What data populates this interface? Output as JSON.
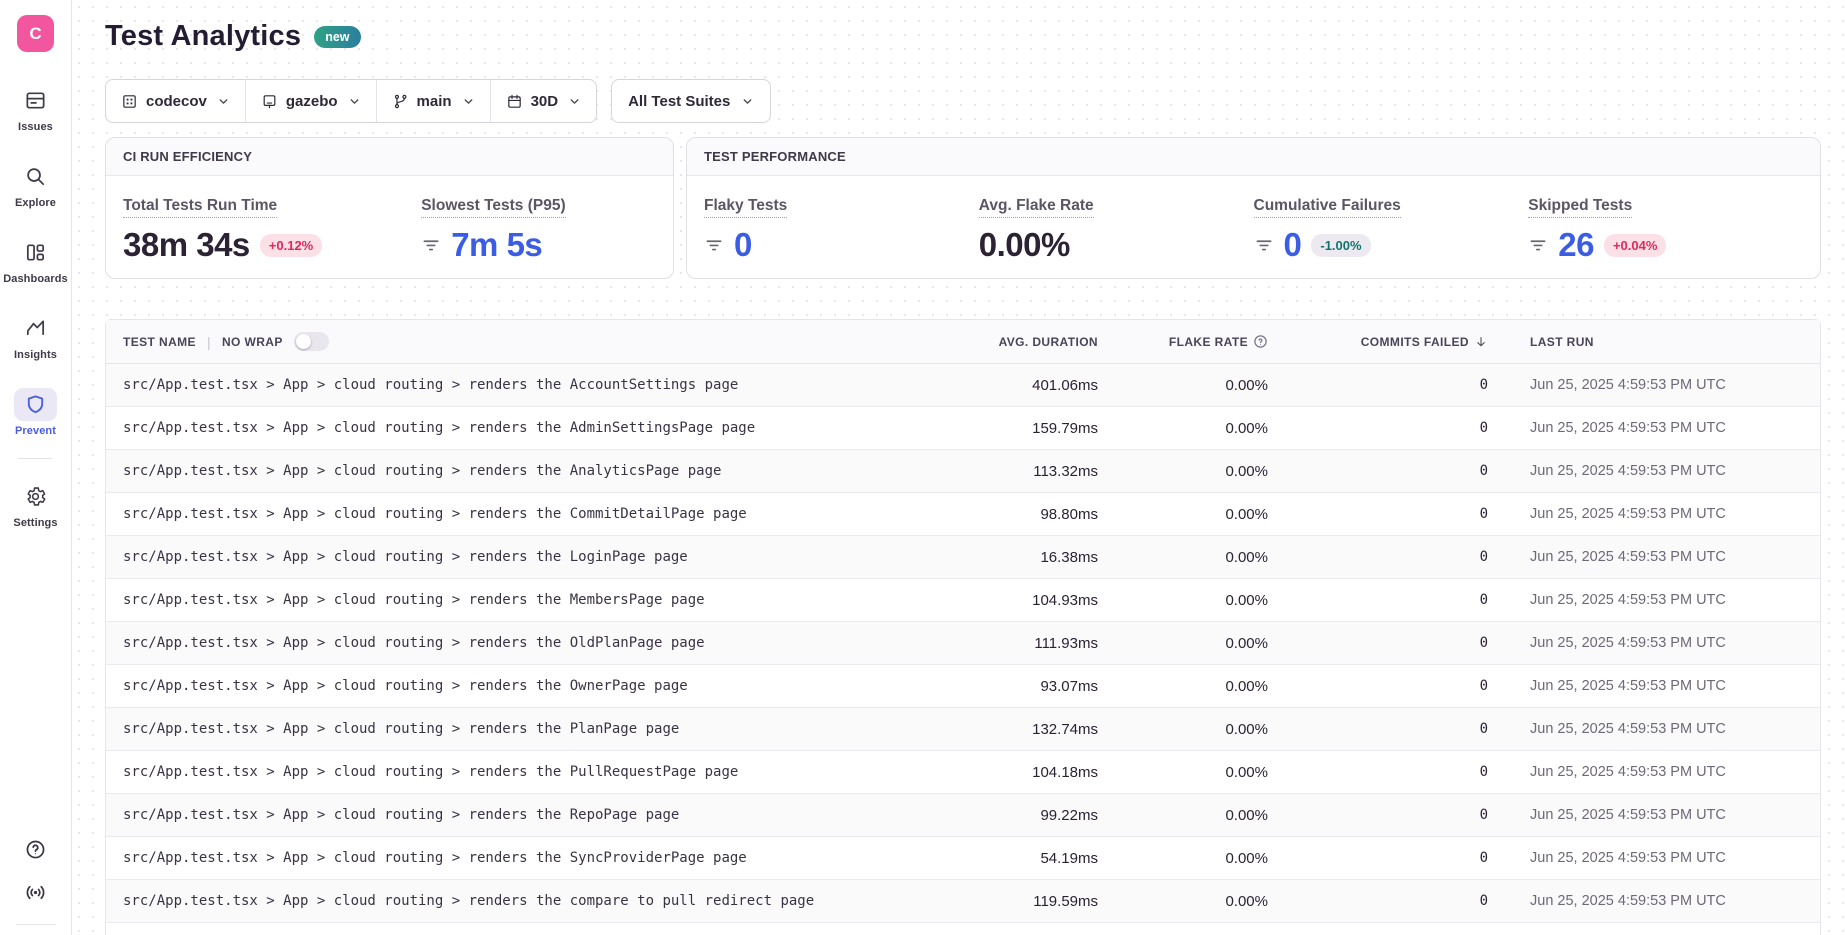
{
  "app": {
    "logo_letter": "C"
  },
  "sidebar": {
    "items": [
      {
        "label": "Issues"
      },
      {
        "label": "Explore"
      },
      {
        "label": "Dashboards"
      },
      {
        "label": "Insights"
      },
      {
        "label": "Prevent"
      },
      {
        "label": "Settings"
      }
    ]
  },
  "header": {
    "title": "Test Analytics",
    "badge": "new"
  },
  "filters": {
    "org": "codecov",
    "repo": "gazebo",
    "branch": "main",
    "date_range": "30D",
    "test_suites": "All Test Suites"
  },
  "panels": {
    "ci": {
      "title": "CI RUN EFFICIENCY",
      "total_run_time": {
        "label": "Total Tests Run Time",
        "value": "38m 34s",
        "badge": "+0.12%"
      },
      "slowest_tests": {
        "label": "Slowest Tests (P95)",
        "value": "7m 5s"
      }
    },
    "performance": {
      "title": "TEST PERFORMANCE",
      "flaky_tests": {
        "label": "Flaky Tests",
        "value": "0"
      },
      "avg_flake_rate": {
        "label": "Avg. Flake Rate",
        "value": "0.00%"
      },
      "cumulative_failures": {
        "label": "Cumulative Failures",
        "value": "0",
        "badge": "-1.00%"
      },
      "skipped_tests": {
        "label": "Skipped Tests",
        "value": "26",
        "badge": "+0.04%"
      }
    }
  },
  "table": {
    "columns": {
      "test_name": "TEST NAME",
      "no_wrap": "NO WRAP",
      "avg_duration": "AVG. DURATION",
      "flake_rate": "FLAKE RATE",
      "commits_failed": "COMMITS FAILED",
      "last_run": "LAST RUN"
    },
    "rows": [
      {
        "name": "src/App.test.tsx > App > cloud routing > renders the AccountSettings page",
        "avg_duration": "401.06ms",
        "flake_rate": "0.00%",
        "commits_failed": "0",
        "last_run": "Jun 25, 2025 4:59:53 PM UTC"
      },
      {
        "name": "src/App.test.tsx > App > cloud routing > renders the AdminSettingsPage page",
        "avg_duration": "159.79ms",
        "flake_rate": "0.00%",
        "commits_failed": "0",
        "last_run": "Jun 25, 2025 4:59:53 PM UTC"
      },
      {
        "name": "src/App.test.tsx > App > cloud routing > renders the AnalyticsPage page",
        "avg_duration": "113.32ms",
        "flake_rate": "0.00%",
        "commits_failed": "0",
        "last_run": "Jun 25, 2025 4:59:53 PM UTC"
      },
      {
        "name": "src/App.test.tsx > App > cloud routing > renders the CommitDetailPage page",
        "avg_duration": "98.80ms",
        "flake_rate": "0.00%",
        "commits_failed": "0",
        "last_run": "Jun 25, 2025 4:59:53 PM UTC"
      },
      {
        "name": "src/App.test.tsx > App > cloud routing > renders the LoginPage page",
        "avg_duration": "16.38ms",
        "flake_rate": "0.00%",
        "commits_failed": "0",
        "last_run": "Jun 25, 2025 4:59:53 PM UTC"
      },
      {
        "name": "src/App.test.tsx > App > cloud routing > renders the MembersPage page",
        "avg_duration": "104.93ms",
        "flake_rate": "0.00%",
        "commits_failed": "0",
        "last_run": "Jun 25, 2025 4:59:53 PM UTC"
      },
      {
        "name": "src/App.test.tsx > App > cloud routing > renders the OldPlanPage page",
        "avg_duration": "111.93ms",
        "flake_rate": "0.00%",
        "commits_failed": "0",
        "last_run": "Jun 25, 2025 4:59:53 PM UTC"
      },
      {
        "name": "src/App.test.tsx > App > cloud routing > renders the OwnerPage page",
        "avg_duration": "93.07ms",
        "flake_rate": "0.00%",
        "commits_failed": "0",
        "last_run": "Jun 25, 2025 4:59:53 PM UTC"
      },
      {
        "name": "src/App.test.tsx > App > cloud routing > renders the PlanPage page",
        "avg_duration": "132.74ms",
        "flake_rate": "0.00%",
        "commits_failed": "0",
        "last_run": "Jun 25, 2025 4:59:53 PM UTC"
      },
      {
        "name": "src/App.test.tsx > App > cloud routing > renders the PullRequestPage page",
        "avg_duration": "104.18ms",
        "flake_rate": "0.00%",
        "commits_failed": "0",
        "last_run": "Jun 25, 2025 4:59:53 PM UTC"
      },
      {
        "name": "src/App.test.tsx > App > cloud routing > renders the RepoPage page",
        "avg_duration": "99.22ms",
        "flake_rate": "0.00%",
        "commits_failed": "0",
        "last_run": "Jun 25, 2025 4:59:53 PM UTC"
      },
      {
        "name": "src/App.test.tsx > App > cloud routing > renders the SyncProviderPage page",
        "avg_duration": "54.19ms",
        "flake_rate": "0.00%",
        "commits_failed": "0",
        "last_run": "Jun 25, 2025 4:59:53 PM UTC"
      },
      {
        "name": "src/App.test.tsx > App > cloud routing > renders the compare to pull redirect page",
        "avg_duration": "119.59ms",
        "flake_rate": "0.00%",
        "commits_failed": "0",
        "last_run": "Jun 25, 2025 4:59:53 PM UTC"
      }
    ]
  },
  "colors": {
    "brand_pink": "#f2569e",
    "accent_blue": "#3b5ce4",
    "badge_red_text": "#e0295c",
    "badge_red_bg": "#fbe0e8",
    "badge_teal_text": "#0f766e",
    "badge_teal_bg": "#eceaf0",
    "new_badge_gradient_start": "#2fa385",
    "new_badge_gradient_end": "#2b7d9d"
  }
}
